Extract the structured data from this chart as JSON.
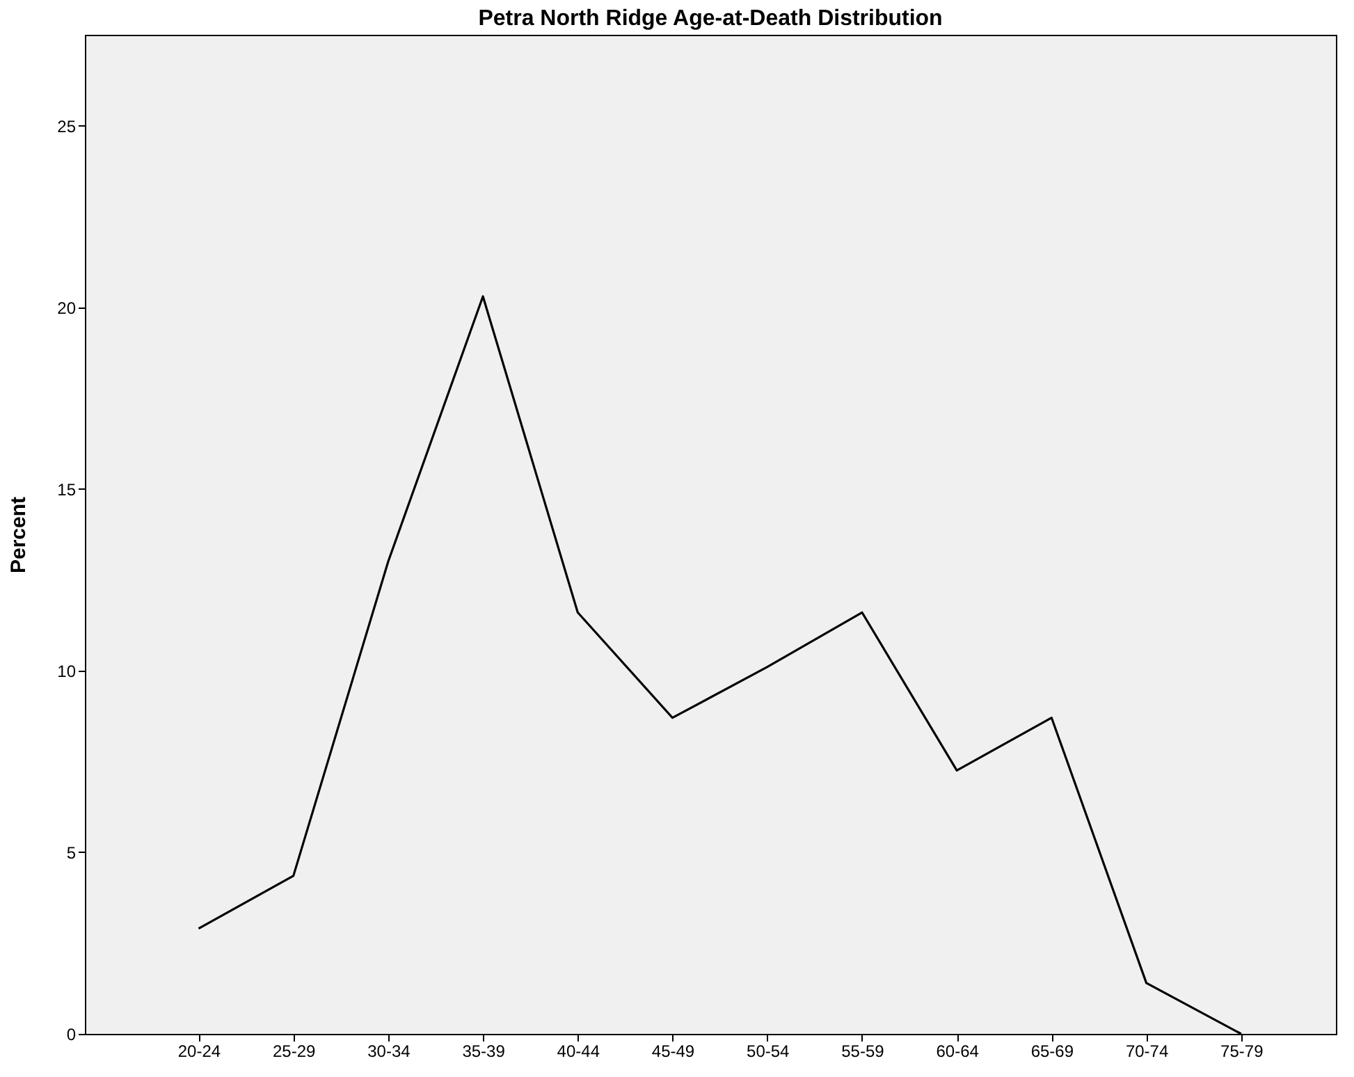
{
  "chart_data": {
    "type": "line",
    "title": "Petra North Ridge Age-at-Death Distribution",
    "ylabel": "Percent",
    "categories": [
      "20-24",
      "25-29",
      "30-34",
      "35-39",
      "40-44",
      "45-49",
      "50-54",
      "55-59",
      "60-64",
      "65-69",
      "70-74",
      "75-79"
    ],
    "series": [
      {
        "color": "#000000",
        "values": [
          2.9,
          4.35,
          13.0,
          20.3,
          11.6,
          8.7,
          10.1,
          11.6,
          7.25,
          8.7,
          1.4,
          0
        ]
      }
    ],
    "ylim": [
      0,
      27.5
    ],
    "yticks": [
      0,
      5,
      10,
      15,
      20,
      25
    ],
    "grid": false,
    "marker": "none",
    "line_style": "solid"
  }
}
